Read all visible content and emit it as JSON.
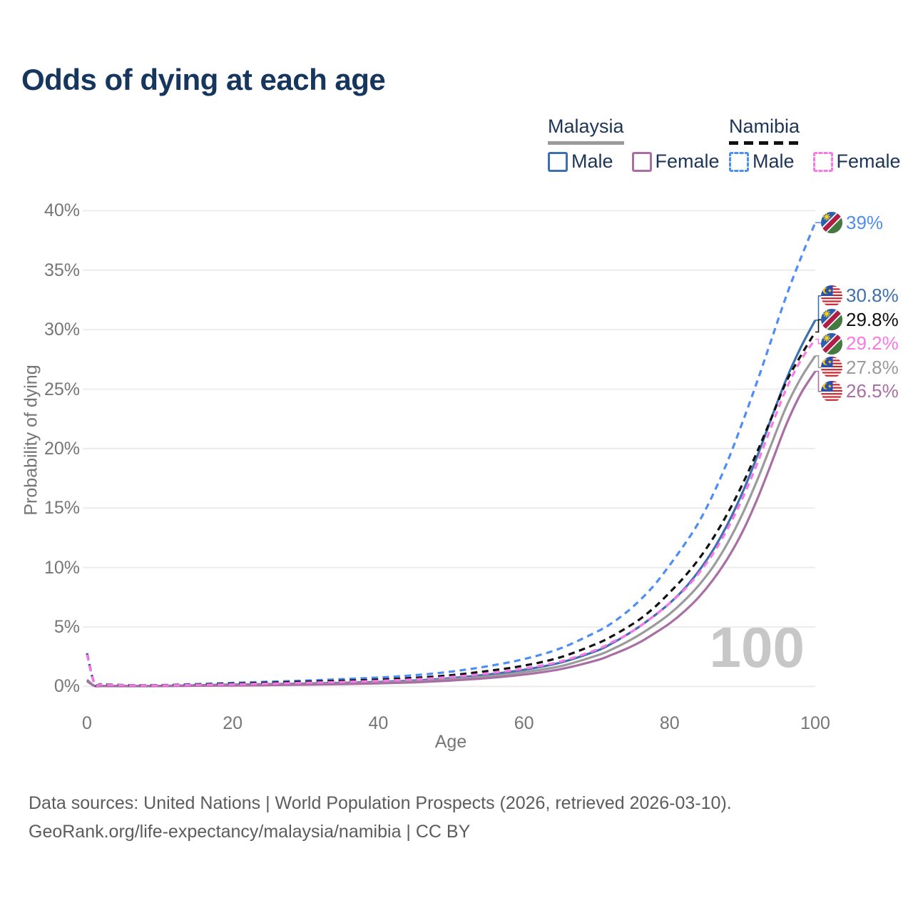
{
  "title": "Odds of dying at each age",
  "legend": {
    "groups": [
      {
        "name": "Malaysia",
        "line_style": "solid",
        "underline_color": "#9a9a9a",
        "items": [
          {
            "label": "Male",
            "color": "#3e6fae",
            "dashed": false
          },
          {
            "label": "Female",
            "color": "#a96fa5",
            "dashed": false
          }
        ]
      },
      {
        "name": "Namibia",
        "line_style": "dashed",
        "underline_color": "#111111",
        "items": [
          {
            "label": "Male",
            "color": "#4f8df6",
            "dashed": true
          },
          {
            "label": "Female",
            "color": "#f978e6",
            "dashed": true
          }
        ]
      }
    ]
  },
  "chart_data": {
    "type": "line",
    "title": "Odds of dying at each age",
    "xlabel": "Age",
    "ylabel": "Probability of dying",
    "xlim": [
      0,
      100
    ],
    "ylim": [
      0,
      40
    ],
    "grid": "horizontal",
    "legend_position": "top-right",
    "hover_age": "100",
    "x_ticks": [
      {
        "value": 0,
        "label": "0"
      },
      {
        "value": 20,
        "label": "20"
      },
      {
        "value": 40,
        "label": "40"
      },
      {
        "value": 60,
        "label": "60"
      },
      {
        "value": 80,
        "label": "80"
      },
      {
        "value": 100,
        "label": "100"
      }
    ],
    "y_ticks": [
      {
        "value": 0,
        "label": "0%"
      },
      {
        "value": 5,
        "label": "5%"
      },
      {
        "value": 10,
        "label": "10%"
      },
      {
        "value": 15,
        "label": "15%"
      },
      {
        "value": 20,
        "label": "20%"
      },
      {
        "value": 25,
        "label": "25%"
      },
      {
        "value": 30,
        "label": "30%"
      },
      {
        "value": 35,
        "label": "35%"
      },
      {
        "value": 40,
        "label": "40%"
      }
    ],
    "x": [
      0,
      1,
      2,
      5,
      10,
      15,
      20,
      25,
      30,
      35,
      40,
      45,
      50,
      55,
      60,
      65,
      70,
      72,
      74,
      76,
      78,
      80,
      82,
      84,
      86,
      88,
      90,
      92,
      94,
      96,
      98,
      100
    ],
    "series": [
      {
        "name": "Namibia Male",
        "country": "Namibia",
        "sex": "Male",
        "color": "#4f8df6",
        "dashed": true,
        "flag": "namibia",
        "end_label": "39%",
        "end_value": 39,
        "values": [
          2.8,
          0.3,
          0.2,
          0.12,
          0.12,
          0.2,
          0.3,
          0.4,
          0.5,
          0.62,
          0.75,
          0.95,
          1.25,
          1.7,
          2.3,
          3.2,
          4.6,
          5.3,
          6.2,
          7.3,
          8.6,
          10.2,
          11.9,
          13.8,
          16.2,
          19.0,
          22.2,
          25.6,
          29.2,
          32.8,
          36.0,
          39.0
        ]
      },
      {
        "name": "Malaysia Male",
        "country": "Malaysia",
        "sex": "Male",
        "color": "#3e6fae",
        "dashed": false,
        "flag": "malaysia",
        "end_label": "30.8%",
        "end_value": 30.8,
        "values": [
          0.55,
          0.06,
          0.04,
          0.03,
          0.04,
          0.1,
          0.16,
          0.2,
          0.24,
          0.3,
          0.38,
          0.5,
          0.7,
          1.0,
          1.4,
          2.0,
          3.0,
          3.6,
          4.3,
          5.1,
          6.0,
          7.0,
          8.2,
          9.7,
          11.5,
          13.7,
          16.3,
          19.3,
          22.6,
          25.8,
          28.5,
          30.8
        ]
      },
      {
        "name": "Namibia Both sexes",
        "country": "Namibia",
        "sex": "Both",
        "color": "#111111",
        "dashed": true,
        "flag": "namibia",
        "end_label": "29.8%",
        "end_value": 29.8,
        "values": [
          2.75,
          0.27,
          0.18,
          0.11,
          0.1,
          0.16,
          0.24,
          0.32,
          0.4,
          0.48,
          0.58,
          0.73,
          0.95,
          1.3,
          1.75,
          2.45,
          3.6,
          4.2,
          4.9,
          5.7,
          6.7,
          7.9,
          9.2,
          10.7,
          12.5,
          14.6,
          17.0,
          19.7,
          22.6,
          25.6,
          27.8,
          29.8
        ]
      },
      {
        "name": "Namibia Female",
        "country": "Namibia",
        "sex": "Female",
        "color": "#f978e6",
        "dashed": true,
        "flag": "namibia",
        "end_label": "29.2%",
        "end_value": 29.2,
        "values": [
          2.7,
          0.25,
          0.16,
          0.1,
          0.09,
          0.13,
          0.18,
          0.24,
          0.31,
          0.38,
          0.47,
          0.6,
          0.8,
          1.1,
          1.5,
          2.1,
          3.1,
          3.7,
          4.3,
          5.1,
          6.0,
          7.0,
          8.1,
          9.5,
          11.2,
          13.3,
          15.8,
          18.7,
          21.9,
          25.0,
          27.4,
          29.2
        ]
      },
      {
        "name": "Malaysia Both sexes",
        "country": "Malaysia",
        "sex": "Both",
        "color": "#9b9b9b",
        "dashed": false,
        "flag": "malaysia",
        "end_label": "27.8%",
        "end_value": 27.8,
        "values": [
          0.5,
          0.055,
          0.035,
          0.028,
          0.035,
          0.08,
          0.12,
          0.16,
          0.2,
          0.25,
          0.32,
          0.42,
          0.6,
          0.85,
          1.2,
          1.7,
          2.6,
          3.1,
          3.7,
          4.4,
          5.2,
          6.1,
          7.2,
          8.5,
          10.1,
          12.1,
          14.5,
          17.3,
          20.4,
          23.5,
          25.9,
          27.8
        ]
      },
      {
        "name": "Malaysia Female",
        "country": "Malaysia",
        "sex": "Female",
        "color": "#a96fa5",
        "dashed": false,
        "flag": "malaysia",
        "end_label": "26.5%",
        "end_value": 26.5,
        "values": [
          0.45,
          0.05,
          0.03,
          0.025,
          0.03,
          0.06,
          0.08,
          0.11,
          0.15,
          0.2,
          0.26,
          0.35,
          0.5,
          0.7,
          1.0,
          1.45,
          2.2,
          2.65,
          3.15,
          3.75,
          4.5,
          5.3,
          6.3,
          7.5,
          9.0,
          10.8,
          13.0,
          15.7,
          18.8,
          22.0,
          24.6,
          26.5
        ]
      }
    ],
    "colors": {
      "grid": "#ececec",
      "tick_text": "#767676",
      "title_text": "#17365d",
      "watermark": "#c7c7c7",
      "footer_text": "#5c5c5c"
    }
  },
  "footer": {
    "line1": "Data sources: United Nations | World Population Prospects (2026, retrieved 2026-03-10).",
    "line2": "GeoRank.org/life-expectancy/malaysia/namibia | CC BY"
  }
}
